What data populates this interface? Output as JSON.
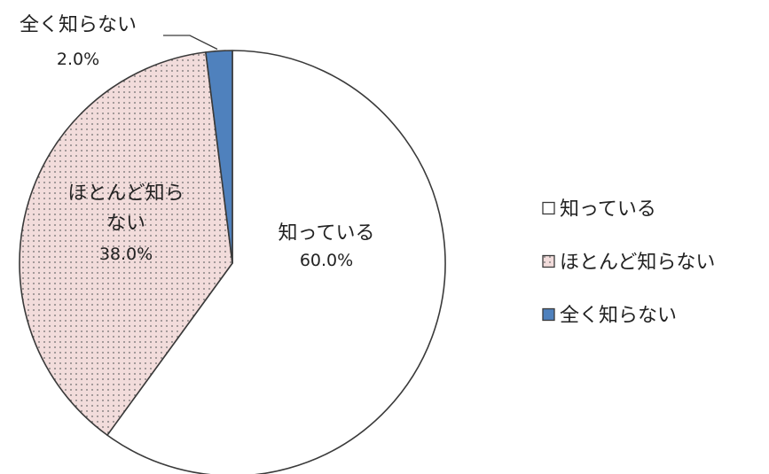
{
  "chart_data": {
    "type": "pie",
    "title": "",
    "start_angle_deg": 0,
    "direction": "clockwise",
    "slices": [
      {
        "label": "知っている",
        "value": 60.0,
        "value_label": "60.0%",
        "color": "#ffffff",
        "pattern": "none"
      },
      {
        "label": "ほとんど知らない",
        "value": 38.0,
        "value_label": "38.0%",
        "color": "#f2dcdb",
        "pattern": "dots"
      },
      {
        "label": "全く知らない",
        "value": 2.0,
        "value_label": "2.0%",
        "color": "#4f81bd",
        "pattern": "none"
      }
    ],
    "data_label_lines": [
      [
        "知っている"
      ],
      [
        "ほとんど知ら",
        "ない"
      ],
      [
        "全く知らない"
      ]
    ],
    "legend": {
      "position": "right",
      "entries": [
        "知っている",
        "ほとんど知らない",
        "全く知らない"
      ]
    }
  }
}
